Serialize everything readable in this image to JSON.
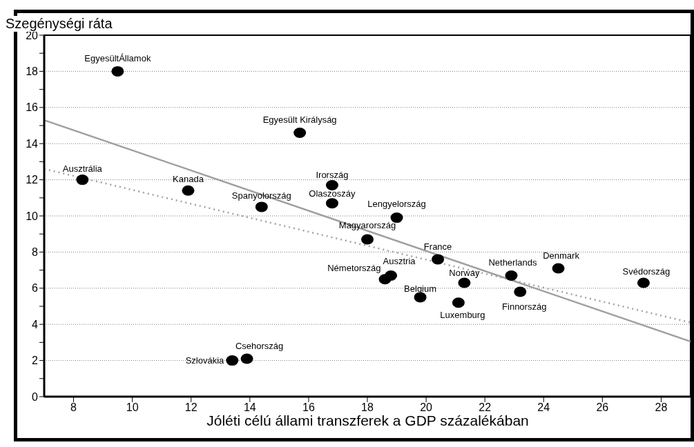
{
  "chart_data": {
    "type": "scatter",
    "xlabel": "Jóléti célú állami transzferek a GDP százalékában",
    "ylabel": "Szegénységi ráta",
    "xlim": [
      7,
      29
    ],
    "xticks": [
      8,
      10,
      12,
      14,
      16,
      18,
      20,
      22,
      24,
      26,
      28
    ],
    "ylim": [
      0,
      20
    ],
    "yticks": [
      0,
      {
        "value": 1,
        "label": null
      },
      2,
      {
        "value": 3,
        "label": null
      },
      4,
      {
        "value": 5,
        "label": null
      },
      6,
      {
        "value": 7,
        "label": null
      },
      8,
      {
        "value": 9,
        "label": null
      },
      10,
      {
        "value": 11,
        "label": null
      },
      12,
      {
        "value": 13,
        "label": null
      },
      14,
      {
        "value": 15,
        "label": null
      },
      16,
      {
        "value": 17,
        "label": null
      },
      18,
      {
        "value": 19,
        "label": null
      },
      20
    ],
    "grid": "y",
    "marker": "circle",
    "legend": false,
    "series": [
      {
        "color": "#000000",
        "x": [
          9.5,
          8.3,
          11.9,
          14.4,
          15.7,
          16.8,
          16.8,
          19.0,
          18.0,
          20.4,
          18.8,
          18.6,
          19.8,
          21.1,
          21.3,
          22.9,
          23.2,
          24.5,
          27.4,
          13.4,
          13.9
        ],
        "values": [
          18,
          12.0,
          11.4,
          10.5,
          14.6,
          11.7,
          10.7,
          9.9,
          8.7,
          7.6,
          6.7,
          6.5,
          5.5,
          5.2,
          6.3,
          6.7,
          5.8,
          7.1,
          6.3,
          2.0,
          2.1
        ]
      },
      {
        "type": "line",
        "color": "#a0a0a0",
        "line_style": "solid",
        "marker": "none",
        "x": [
          7,
          29
        ],
        "values": [
          15.3,
          3.05
        ]
      },
      {
        "type": "line",
        "color": "#a0a0a0",
        "line_style": "dotted",
        "marker": "none",
        "x": [
          7,
          29
        ],
        "values": [
          12.6,
          4.1
        ]
      }
    ],
    "annotations": [
      {
        "text": "EgyesültÁllamok",
        "x": 9.5,
        "y": 18
      },
      {
        "text": "Ausztrália",
        "x": 8.3,
        "y": 12.0
      },
      {
        "text": "Kanada",
        "x": 11.9,
        "y": 11.4
      },
      {
        "text": "Spanyolország",
        "x": 14.4,
        "y": 10.5
      },
      {
        "text": "Egyesült Királyság",
        "x": 15.7,
        "y": 14.6
      },
      {
        "text": "Irország",
        "x": 16.8,
        "y": 11.7
      },
      {
        "text": "Olaszoszáy",
        "x": 16.8,
        "y": 10.7
      },
      {
        "text": "Lengyelország",
        "x": 19.0,
        "y": 9.9
      },
      {
        "text": "Magyarország",
        "x": 18.0,
        "y": 8.7
      },
      {
        "text": "France",
        "x": 20.4,
        "y": 7.6
      },
      {
        "text": "Ausztria",
        "x": 18.8,
        "y": 6.7
      },
      {
        "text": "Németország",
        "x": 18.6,
        "y": 6.5
      },
      {
        "text": "Belgium",
        "x": 19.8,
        "y": 5.5
      },
      {
        "text": "Luxemburg",
        "x": 21.1,
        "y": 5.2
      },
      {
        "text": "Norway",
        "x": 21.3,
        "y": 6.3
      },
      {
        "text": "Netherlands",
        "x": 22.9,
        "y": 6.7
      },
      {
        "text": "Finnország",
        "x": 23.2,
        "y": 5.8
      },
      {
        "text": "Denmark",
        "x": 24.5,
        "y": 7.1
      },
      {
        "text": "Svédország",
        "x": 27.4,
        "y": 6.3
      },
      {
        "text": "Szlovákia",
        "x": 13.4,
        "y": 2.0
      },
      {
        "text": "Csehország",
        "x": 13.9,
        "y": 2.1
      }
    ]
  }
}
